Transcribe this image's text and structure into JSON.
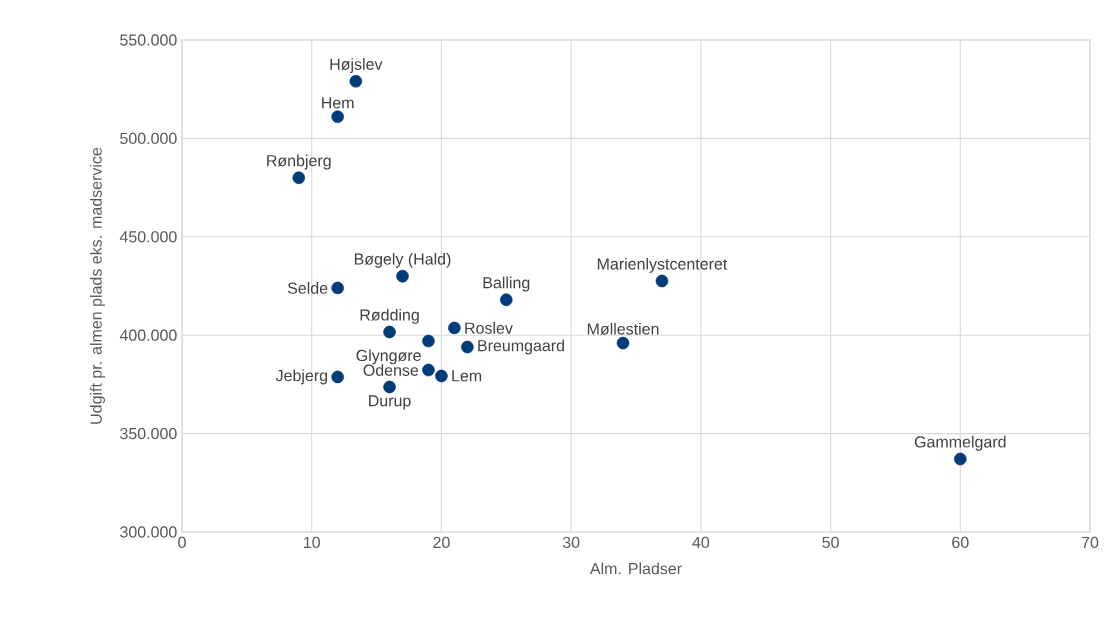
{
  "chart_data": {
    "type": "scatter",
    "xlabel": "Alm. Pladser",
    "ylabel": "Udgift pr. almen plads eks. madservice",
    "xlim": [
      0,
      70
    ],
    "xticks": [
      0,
      10,
      20,
      30,
      40,
      50,
      60,
      70
    ],
    "ylim": [
      300000,
      550000
    ],
    "yticks": [
      {
        "value": 300000,
        "label": "300.000"
      },
      {
        "value": 350000,
        "label": "350.000"
      },
      {
        "value": 400000,
        "label": "400.000"
      },
      {
        "value": 450000,
        "label": "450.000"
      },
      {
        "value": 500000,
        "label": "500.000"
      },
      {
        "value": 550000,
        "label": "550.000"
      }
    ],
    "grid": true,
    "marker": "circle",
    "series": [
      {
        "name": "Højslev",
        "color": "#003c7a",
        "x": [
          13.4
        ],
        "values": [
          529000
        ]
      },
      {
        "name": "Hem",
        "color": "#003c7a",
        "x": [
          12
        ],
        "values": [
          511000
        ]
      },
      {
        "name": "Rønbjerg",
        "color": "#003c7a",
        "x": [
          9
        ],
        "values": [
          480000
        ]
      },
      {
        "name": "Bøgely (Hald)",
        "color": "#003c7a",
        "x": [
          17
        ],
        "values": [
          430000
        ]
      },
      {
        "name": "Selde",
        "color": "#003c7a",
        "x": [
          12
        ],
        "values": [
          424000
        ]
      },
      {
        "name": "Balling",
        "color": "#003c7a",
        "x": [
          25
        ],
        "values": [
          418000
        ]
      },
      {
        "name": "Marienlystcenteret",
        "color": "#003c7a",
        "x": [
          37
        ],
        "values": [
          427500
        ]
      },
      {
        "name": "Roslev",
        "color": "#003c7a",
        "x": [
          21
        ],
        "values": [
          403700
        ]
      },
      {
        "name": "Rødding",
        "color": "#003c7a",
        "x": [
          16
        ],
        "values": [
          401600
        ]
      },
      {
        "name": "Glyngøre",
        "color": "#003c7a",
        "x": [
          19
        ],
        "values": [
          397000
        ]
      },
      {
        "name": "Breumgaard",
        "color": "#003c7a",
        "x": [
          22
        ],
        "values": [
          394000
        ]
      },
      {
        "name": "Møllestien",
        "color": "#003c7a",
        "x": [
          34
        ],
        "values": [
          396000
        ]
      },
      {
        "name": "Odense",
        "color": "#003c7a",
        "x": [
          19
        ],
        "values": [
          382300
        ]
      },
      {
        "name": "Lem",
        "color": "#003c7a",
        "x": [
          20
        ],
        "values": [
          379300
        ]
      },
      {
        "name": "Jebjerg",
        "color": "#003c7a",
        "x": [
          12
        ],
        "values": [
          378800
        ]
      },
      {
        "name": "Durup",
        "color": "#003c7a",
        "x": [
          16
        ],
        "values": [
          373700
        ]
      },
      {
        "name": "Gammelgard",
        "color": "#003c7a",
        "x": [
          60
        ],
        "values": [
          337100
        ]
      }
    ]
  }
}
